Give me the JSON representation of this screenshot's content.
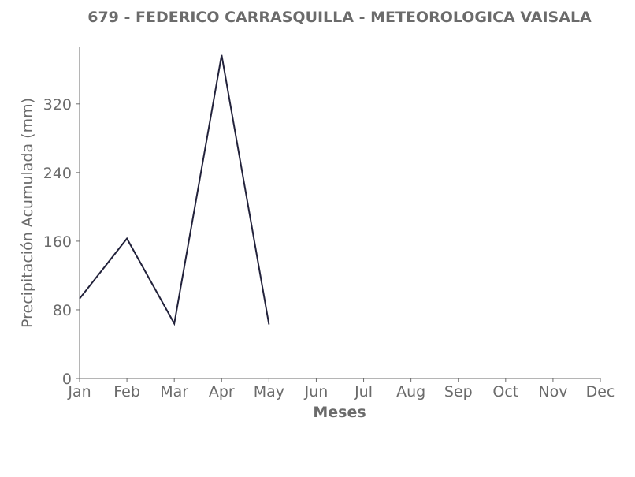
{
  "chart_data": {
    "type": "line",
    "title": "679 - FEDERICO CARRASQUILLA - METEOROLOGICA VAISALA",
    "xlabel": "Meses",
    "ylabel": "Precipitación Acumulada (mm)",
    "categories": [
      "Jan",
      "Feb",
      "Mar",
      "Apr",
      "May",
      "Jun",
      "Jul",
      "Aug",
      "Sep",
      "Oct",
      "Nov",
      "Dec"
    ],
    "series": [
      {
        "values": [
          93,
          163,
          64,
          377,
          63,
          null,
          null,
          null,
          null,
          null,
          null,
          null
        ]
      }
    ],
    "ylim": [
      0,
      386
    ],
    "yticks": [
      0,
      80,
      160,
      240,
      320
    ],
    "grid": false,
    "colors": {
      "line": "#22223b",
      "axis": "#6b6b6b",
      "text": "#6b6b6b"
    }
  }
}
